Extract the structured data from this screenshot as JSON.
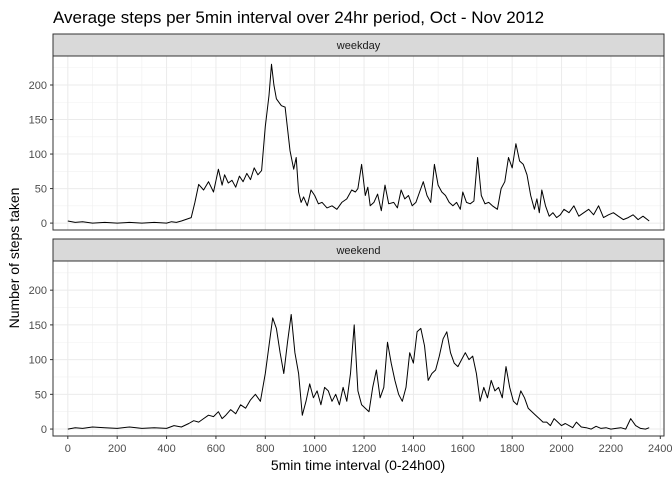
{
  "chart_data": {
    "type": "line",
    "title": "Average steps per 5min interval over 24hr period, Oct - Nov 2012",
    "xlabel": "5min time interval (0-24h00)",
    "ylabel": "Number of steps taken",
    "xlim": [
      -60,
      2415
    ],
    "ylim": [
      -10,
      242
    ],
    "x_ticks": [
      0,
      200,
      400,
      600,
      800,
      1000,
      1200,
      1400,
      1600,
      1800,
      2000,
      2200,
      2400
    ],
    "y_ticks": [
      0,
      50,
      100,
      150,
      200
    ],
    "grid": true,
    "facets": [
      {
        "name": "weekday",
        "x": [
          0,
          30,
          60,
          100,
          150,
          200,
          250,
          300,
          350,
          400,
          420,
          440,
          460,
          500,
          515,
          530,
          550,
          570,
          590,
          610,
          625,
          635,
          650,
          665,
          680,
          695,
          710,
          725,
          740,
          755,
          770,
          785,
          800,
          815,
          825,
          835,
          845,
          855,
          865,
          880,
          900,
          915,
          925,
          935,
          945,
          955,
          970,
          985,
          1000,
          1015,
          1030,
          1050,
          1070,
          1090,
          1110,
          1130,
          1150,
          1165,
          1175,
          1190,
          1205,
          1215,
          1225,
          1240,
          1255,
          1270,
          1285,
          1300,
          1320,
          1335,
          1350,
          1365,
          1380,
          1395,
          1410,
          1425,
          1440,
          1455,
          1470,
          1485,
          1500,
          1515,
          1530,
          1545,
          1560,
          1575,
          1590,
          1600,
          1615,
          1630,
          1645,
          1660,
          1675,
          1690,
          1705,
          1720,
          1740,
          1755,
          1770,
          1785,
          1800,
          1815,
          1830,
          1845,
          1860,
          1875,
          1890,
          1900,
          1910,
          1920,
          1935,
          1950,
          1965,
          1980,
          1995,
          2010,
          2030,
          2050,
          2070,
          2090,
          2110,
          2130,
          2150,
          2170,
          2190,
          2210,
          2230,
          2250,
          2270,
          2290,
          2310,
          2330,
          2355
        ],
        "y": [
          3,
          1,
          2,
          0,
          1,
          0,
          1,
          0,
          1,
          0,
          2,
          1,
          3,
          8,
          30,
          56,
          48,
          60,
          45,
          78,
          55,
          70,
          58,
          62,
          52,
          68,
          60,
          72,
          63,
          80,
          70,
          76,
          140,
          185,
          230,
          200,
          180,
          175,
          170,
          168,
          105,
          78,
          95,
          45,
          30,
          38,
          25,
          48,
          40,
          28,
          30,
          22,
          25,
          20,
          30,
          35,
          48,
          45,
          50,
          85,
          40,
          52,
          25,
          30,
          42,
          18,
          55,
          28,
          30,
          22,
          48,
          35,
          40,
          25,
          30,
          45,
          60,
          40,
          30,
          85,
          55,
          45,
          40,
          30,
          25,
          30,
          20,
          45,
          30,
          28,
          32,
          95,
          40,
          28,
          30,
          25,
          20,
          50,
          60,
          95,
          80,
          115,
          90,
          85,
          70,
          40,
          20,
          35,
          15,
          48,
          25,
          10,
          15,
          8,
          12,
          20,
          15,
          25,
          10,
          15,
          20,
          12,
          25,
          8,
          12,
          15,
          10,
          5,
          8,
          12,
          5,
          10,
          3
        ]
      },
      {
        "name": "weekend",
        "x": [
          0,
          30,
          60,
          100,
          150,
          200,
          250,
          300,
          350,
          400,
          430,
          460,
          490,
          510,
          530,
          550,
          570,
          590,
          610,
          625,
          640,
          660,
          680,
          700,
          720,
          740,
          760,
          780,
          800,
          815,
          830,
          845,
          860,
          875,
          890,
          905,
          920,
          935,
          950,
          965,
          980,
          995,
          1010,
          1025,
          1040,
          1055,
          1070,
          1085,
          1100,
          1115,
          1130,
          1145,
          1160,
          1175,
          1190,
          1205,
          1220,
          1235,
          1250,
          1265,
          1280,
          1295,
          1310,
          1325,
          1340,
          1355,
          1370,
          1385,
          1400,
          1415,
          1430,
          1445,
          1460,
          1475,
          1490,
          1505,
          1520,
          1535,
          1550,
          1565,
          1580,
          1595,
          1610,
          1625,
          1640,
          1655,
          1670,
          1685,
          1700,
          1715,
          1730,
          1745,
          1760,
          1775,
          1790,
          1805,
          1820,
          1835,
          1850,
          1865,
          1880,
          1895,
          1910,
          1925,
          1940,
          1955,
          1970,
          1985,
          2000,
          2015,
          2030,
          2045,
          2060,
          2080,
          2100,
          2120,
          2140,
          2160,
          2180,
          2200,
          2220,
          2240,
          2260,
          2280,
          2300,
          2320,
          2340,
          2355
        ],
        "y": [
          0,
          2,
          1,
          3,
          2,
          1,
          3,
          1,
          2,
          1,
          5,
          3,
          8,
          12,
          10,
          15,
          20,
          18,
          25,
          15,
          20,
          28,
          22,
          35,
          30,
          42,
          50,
          40,
          80,
          120,
          160,
          145,
          110,
          80,
          125,
          165,
          110,
          80,
          20,
          40,
          65,
          45,
          55,
          35,
          60,
          55,
          40,
          50,
          35,
          60,
          40,
          80,
          150,
          55,
          35,
          30,
          25,
          60,
          85,
          45,
          60,
          125,
          95,
          70,
          50,
          40,
          60,
          110,
          95,
          140,
          145,
          120,
          70,
          80,
          85,
          105,
          130,
          140,
          110,
          95,
          90,
          100,
          110,
          100,
          105,
          80,
          40,
          60,
          45,
          70,
          55,
          60,
          45,
          90,
          60,
          40,
          35,
          55,
          45,
          30,
          25,
          20,
          15,
          10,
          10,
          5,
          15,
          10,
          5,
          8,
          5,
          2,
          10,
          3,
          2,
          0,
          4,
          1,
          2,
          0,
          1,
          2,
          0,
          15,
          5,
          1,
          0,
          2
        ]
      }
    ]
  }
}
